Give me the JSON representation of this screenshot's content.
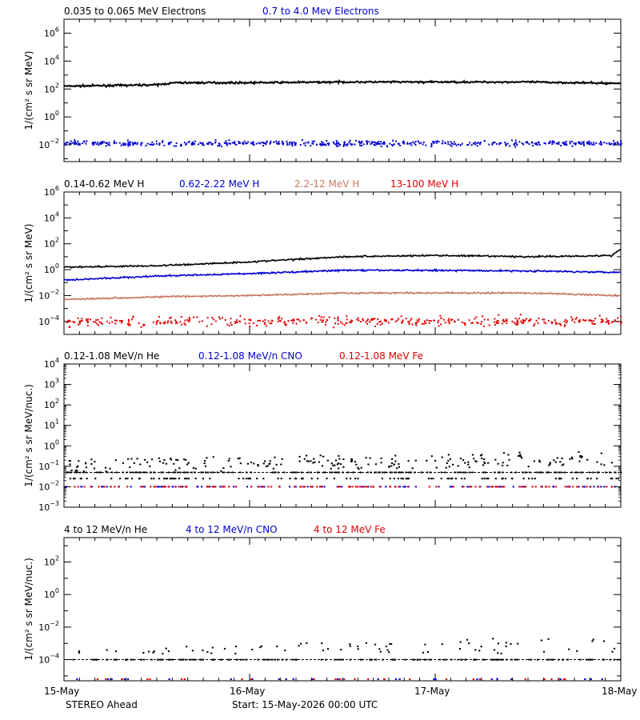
{
  "colors": {
    "black": "#000000",
    "blue": "#0000d0",
    "salmon": "#c87860",
    "red": "#e00000"
  },
  "footer": {
    "mission": "STEREO Ahead",
    "start": "Start: 15-May-2026 00:00 UTC"
  },
  "xaxis": {
    "ticks": [
      "15-May",
      "16-May",
      "17-May",
      "18-May"
    ]
  },
  "chart_data": [
    {
      "type": "line",
      "ylabel": "1/(cm² s sr MeV)",
      "yscale": "log",
      "ylim_exp": [
        -3.2,
        7.0
      ],
      "ytick_exponents": [
        -2,
        0,
        2,
        4,
        6
      ],
      "series": [
        {
          "name": "0.035 to 0.065 MeV Electrons",
          "color": "black",
          "style": "line",
          "x_days": [
            0,
            0.25,
            0.5,
            0.6,
            1.0,
            1.5,
            2.0,
            2.5,
            3.0
          ],
          "log10_values": [
            2.2,
            2.25,
            2.3,
            2.45,
            2.45,
            2.5,
            2.5,
            2.5,
            2.4
          ]
        },
        {
          "name": "0.7 to 4.0 Mev Electrons",
          "color": "blue",
          "style": "dots",
          "x_days": [
            0,
            1.5,
            3.0
          ],
          "log10_values": [
            -1.9,
            -1.9,
            -1.9
          ]
        }
      ]
    },
    {
      "type": "line",
      "ylabel": "1/(cm² s sr MeV)",
      "yscale": "log",
      "ylim_exp": [
        -5.0,
        6.0
      ],
      "ytick_exponents": [
        -4,
        -2,
        0,
        2,
        4,
        6
      ],
      "series": [
        {
          "name": "0.14-0.62 MeV H",
          "color": "black",
          "style": "line",
          "x_days": [
            0,
            0.5,
            1.0,
            1.5,
            2.0,
            2.5,
            3.0
          ],
          "log10_values": [
            0.2,
            0.3,
            0.6,
            1.0,
            1.1,
            1.0,
            1.1
          ]
        },
        {
          "name": "0.62-2.22 MeV H",
          "color": "blue",
          "style": "line",
          "x_days": [
            0,
            0.5,
            1.0,
            1.5,
            2.0,
            2.5,
            3.0
          ],
          "log10_values": [
            -0.8,
            -0.5,
            -0.3,
            -0.05,
            -0.05,
            -0.1,
            -0.2
          ]
        },
        {
          "name": "2.2-12 MeV H",
          "color": "salmon",
          "style": "line",
          "x_days": [
            0,
            0.5,
            1.0,
            1.5,
            2.0,
            2.5,
            3.0
          ],
          "log10_values": [
            -2.3,
            -2.1,
            -2.0,
            -1.8,
            -1.8,
            -1.8,
            -2.0
          ]
        },
        {
          "name": "13-100 MeV H",
          "color": "red",
          "style": "dots",
          "x_days": [
            0,
            1.5,
            3.0
          ],
          "log10_values": [
            -4.0,
            -4.0,
            -4.0
          ]
        }
      ]
    },
    {
      "type": "scatter",
      "ylabel": "1/(cm² s sr MeV/nuc.)",
      "yscale": "log",
      "ylim_exp": [
        -3.0,
        4.0
      ],
      "ytick_exponents": [
        -3,
        -2,
        -1,
        0,
        1,
        2,
        3,
        4
      ],
      "series": [
        {
          "name": "0.12-1.08 MeV/n He",
          "color": "black",
          "style": "dots",
          "x_days": [
            0,
            1.5,
            3.0
          ],
          "log10_values": [
            -1.2,
            -1.0,
            -0.8
          ]
        },
        {
          "name": "0.12-1.08 MeV/n CNO",
          "color": "blue",
          "style": "dots",
          "x_days": [
            0,
            1.5,
            3.0
          ],
          "log10_values": [
            -2.0,
            -2.0,
            -2.0
          ]
        },
        {
          "name": "0.12-1.08 MeV Fe",
          "color": "red",
          "style": "dots",
          "x_days": [
            0,
            1.5,
            3.0
          ],
          "log10_values": [
            -2.0,
            -2.0,
            -2.0
          ]
        }
      ]
    },
    {
      "type": "scatter",
      "ylabel": "1/(cm² s sr MeV/nuc.)",
      "yscale": "log",
      "ylim_exp": [
        -5.3,
        3.5
      ],
      "ytick_exponents": [
        -4,
        -2,
        0,
        2
      ],
      "series": [
        {
          "name": "4 to 12 MeV/n He",
          "color": "black",
          "style": "dots",
          "x_days": [
            0,
            1.5,
            3.0
          ],
          "log10_values": [
            -4.0,
            -4.0,
            -4.0
          ]
        },
        {
          "name": "4 to 12 MeV/n CNO",
          "color": "blue",
          "style": "dots",
          "x_days": [
            0,
            1.5,
            3.0
          ],
          "log10_values": [
            -5.2,
            -5.2,
            -5.2
          ]
        },
        {
          "name": "4 to 12 MeV Fe",
          "color": "red",
          "style": "dots",
          "x_days": [
            0,
            1.5,
            3.0
          ],
          "log10_values": [
            -5.2,
            -5.2,
            -5.2
          ]
        }
      ]
    }
  ]
}
